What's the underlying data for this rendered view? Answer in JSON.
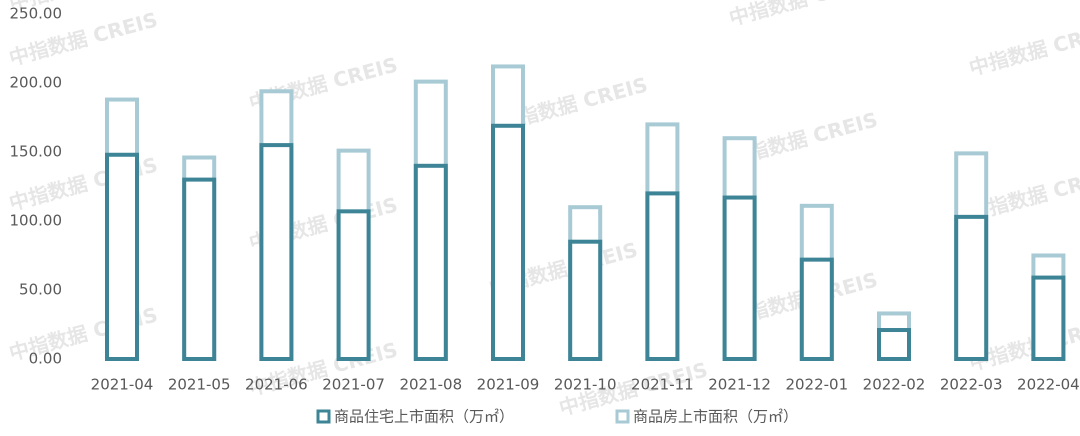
{
  "chart_data": {
    "type": "bar",
    "overlap": true,
    "watermark": "中指数据 CREIS",
    "categories": [
      "2021-04",
      "2021-05",
      "2021-06",
      "2021-07",
      "2021-08",
      "2021-09",
      "2021-10",
      "2021-11",
      "2021-12",
      "2022-01",
      "2022-02",
      "2022-03",
      "2022-04"
    ],
    "series": [
      {
        "name": "商品住宅上市面积（万㎡）",
        "color": "#3d8496",
        "values": [
          148,
          130,
          155,
          107,
          140,
          169,
          85,
          120,
          117,
          72,
          21,
          103,
          59
        ]
      },
      {
        "name": "商品房上市面积（万㎡）",
        "color": "#a7cad5",
        "values": [
          188,
          146,
          194,
          151,
          201,
          212,
          110,
          170,
          160,
          111,
          33,
          149,
          75
        ]
      }
    ],
    "ylim": [
      0,
      250
    ],
    "yticks": [
      {
        "value": 0,
        "label": "0.00"
      },
      {
        "value": 50,
        "label": "50.00"
      },
      {
        "value": 100,
        "label": "100.00"
      },
      {
        "value": 150,
        "label": "150.00"
      },
      {
        "value": 200,
        "label": "200.00"
      },
      {
        "value": 250,
        "label": "250.00"
      }
    ],
    "legend": "bottom"
  }
}
